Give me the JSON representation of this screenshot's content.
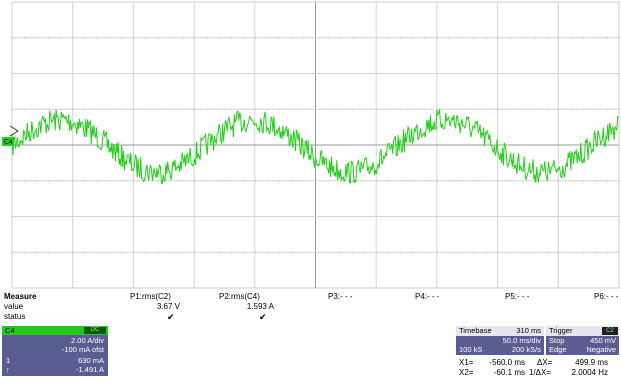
{
  "trace": {
    "color": "#22d01a",
    "channel_marker": "C4"
  },
  "measure": {
    "title": "Measure",
    "row_labels": [
      "value",
      "status"
    ],
    "params": [
      {
        "name": "P1:rms(C2)",
        "value": "3.67 V",
        "status": "✔"
      },
      {
        "name": "P2:rms(C4)",
        "value": "1.593 A",
        "status": "✔"
      },
      {
        "name": "P3:- - -",
        "value": "",
        "status": ""
      },
      {
        "name": "P4:- - -",
        "value": "",
        "status": ""
      },
      {
        "name": "P5:- - -",
        "value": "",
        "status": ""
      },
      {
        "name": "P6:- - -",
        "value": "",
        "status": ""
      }
    ]
  },
  "channel": {
    "name": "C4",
    "coupling": "DC",
    "scale": "2.00 A/div",
    "offset": "-100 mA ofst",
    "cursor_marker_1": "1",
    "cursor_value_1": "630 mA",
    "cursor_marker_2": "↑",
    "cursor_value_2": "-1.491 A",
    "color": "#25c81c"
  },
  "timebase": {
    "label": "Timebase",
    "delay": "310 ms",
    "scale": "50.0 ms/div",
    "samples": "100 kS",
    "rate": "200 kS/s"
  },
  "trigger": {
    "label": "Trigger",
    "channel": "C2",
    "mode": "Stop",
    "level": "450 mV",
    "type": "Edge",
    "slope": "Negative"
  },
  "cursors": {
    "x1_label": "X1=",
    "x1": "-560.0 ms",
    "dx_label": "ΔX=",
    "dx": "499.9 ms",
    "x2_label": "X2=",
    "x2": "-60.1 ms",
    "freq_label": "1/ΔX=",
    "freq": "2.0004 Hz"
  }
}
